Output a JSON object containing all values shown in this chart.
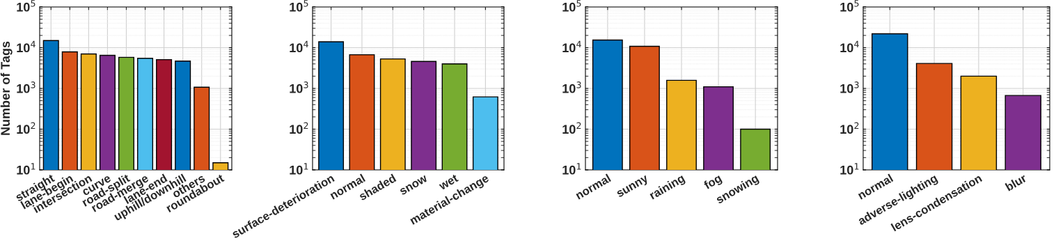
{
  "chart_data": [
    {
      "type": "bar",
      "ylabel": "Number of Tags",
      "log": true,
      "grid": true,
      "ylim": [
        10,
        100000
      ],
      "yticks": [
        {
          "value": 10,
          "label": "10$^{1}$"
        },
        {
          "value": 100,
          "label": "10$^{2}$"
        },
        {
          "value": 1000,
          "label": "10$^{3}$"
        },
        {
          "value": 10000,
          "label": "10$^{4}$"
        },
        {
          "value": 100000,
          "label": "10$^{5}$"
        }
      ],
      "categories": [
        "straight",
        "lane-begin",
        "intersection",
        "curve",
        "road-split",
        "road-merge",
        "lane-end",
        "uphill/downhill",
        "others",
        "roundabout"
      ],
      "values": [
        15000,
        7900,
        7000,
        6500,
        5800,
        5500,
        5100,
        4700,
        1070,
        15
      ],
      "colors": [
        "#0072bd",
        "#d95319",
        "#edb120",
        "#7e2f8e",
        "#77ac30",
        "#4dbeee",
        "#a2142f",
        "#0072bd",
        "#d95319",
        "#edb120"
      ]
    },
    {
      "type": "bar",
      "log": true,
      "grid": true,
      "ylim": [
        10,
        100000
      ],
      "yticks": [
        {
          "value": 10,
          "label": "10$^{1}$"
        },
        {
          "value": 100,
          "label": "10$^{2}$"
        },
        {
          "value": 1000,
          "label": "10$^{3}$"
        },
        {
          "value": 10000,
          "label": "10$^{4}$"
        },
        {
          "value": 100000,
          "label": "10$^{5}$"
        }
      ],
      "categories": [
        "surface-deterioration",
        "normal",
        "shaded",
        "snow",
        "wet",
        "material-change"
      ],
      "values": [
        14000,
        6700,
        5300,
        4600,
        4000,
        620
      ],
      "colors": [
        "#0072bd",
        "#d95319",
        "#edb120",
        "#7e2f8e",
        "#77ac30",
        "#4dbeee"
      ]
    },
    {
      "type": "bar",
      "log": true,
      "grid": true,
      "ylim": [
        10,
        100000
      ],
      "yticks": [
        {
          "value": 10,
          "label": "10$^{1}$"
        },
        {
          "value": 100,
          "label": "10$^{2}$"
        },
        {
          "value": 1000,
          "label": "10$^{3}$"
        },
        {
          "value": 10000,
          "label": "10$^{4}$"
        },
        {
          "value": 100000,
          "label": "10$^{5}$"
        }
      ],
      "categories": [
        "normal",
        "sunny",
        "raining",
        "fog",
        "snowing"
      ],
      "values": [
        15400,
        10800,
        1580,
        1100,
        100
      ],
      "colors": [
        "#0072bd",
        "#d95319",
        "#edb120",
        "#7e2f8e",
        "#77ac30"
      ]
    },
    {
      "type": "bar",
      "log": true,
      "grid": true,
      "ylim": [
        10,
        100000
      ],
      "yticks": [
        {
          "value": 10,
          "label": "10$^{1}$"
        },
        {
          "value": 100,
          "label": "10$^{2}$"
        },
        {
          "value": 1000,
          "label": "10$^{3}$"
        },
        {
          "value": 10000,
          "label": "10$^{4}$"
        },
        {
          "value": 100000,
          "label": "10$^{5}$"
        }
      ],
      "categories": [
        "normal",
        "adverse-lighting",
        "lens-condensation",
        "blur"
      ],
      "values": [
        22000,
        4100,
        2000,
        670
      ],
      "colors": [
        "#0072bd",
        "#d95319",
        "#edb120",
        "#7e2f8e"
      ]
    }
  ]
}
